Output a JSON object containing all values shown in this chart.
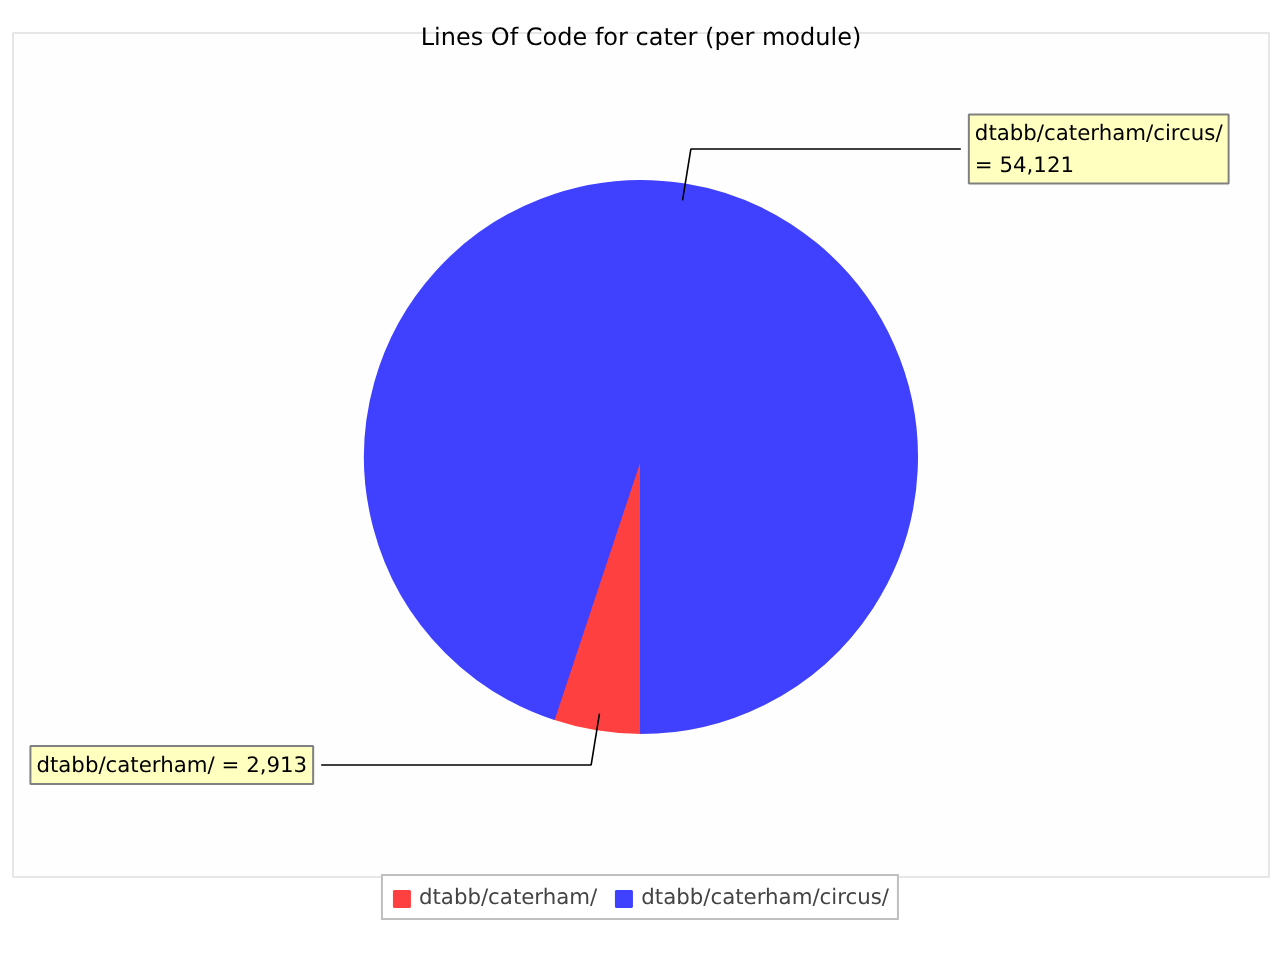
{
  "chart_data": {
    "type": "pie",
    "title": "Lines Of Code for cater (per module)",
    "categories": [
      "dtabb/caterham/",
      "dtabb/caterham/circus/"
    ],
    "values": [
      2913,
      54121
    ],
    "colors": [
      "#ff4040",
      "#4040ff"
    ],
    "value_labels": [
      "dtabb/caterham/ = 2,913",
      "dtabb/caterham/circus/\n= 54,121"
    ],
    "legend": "bottom"
  }
}
